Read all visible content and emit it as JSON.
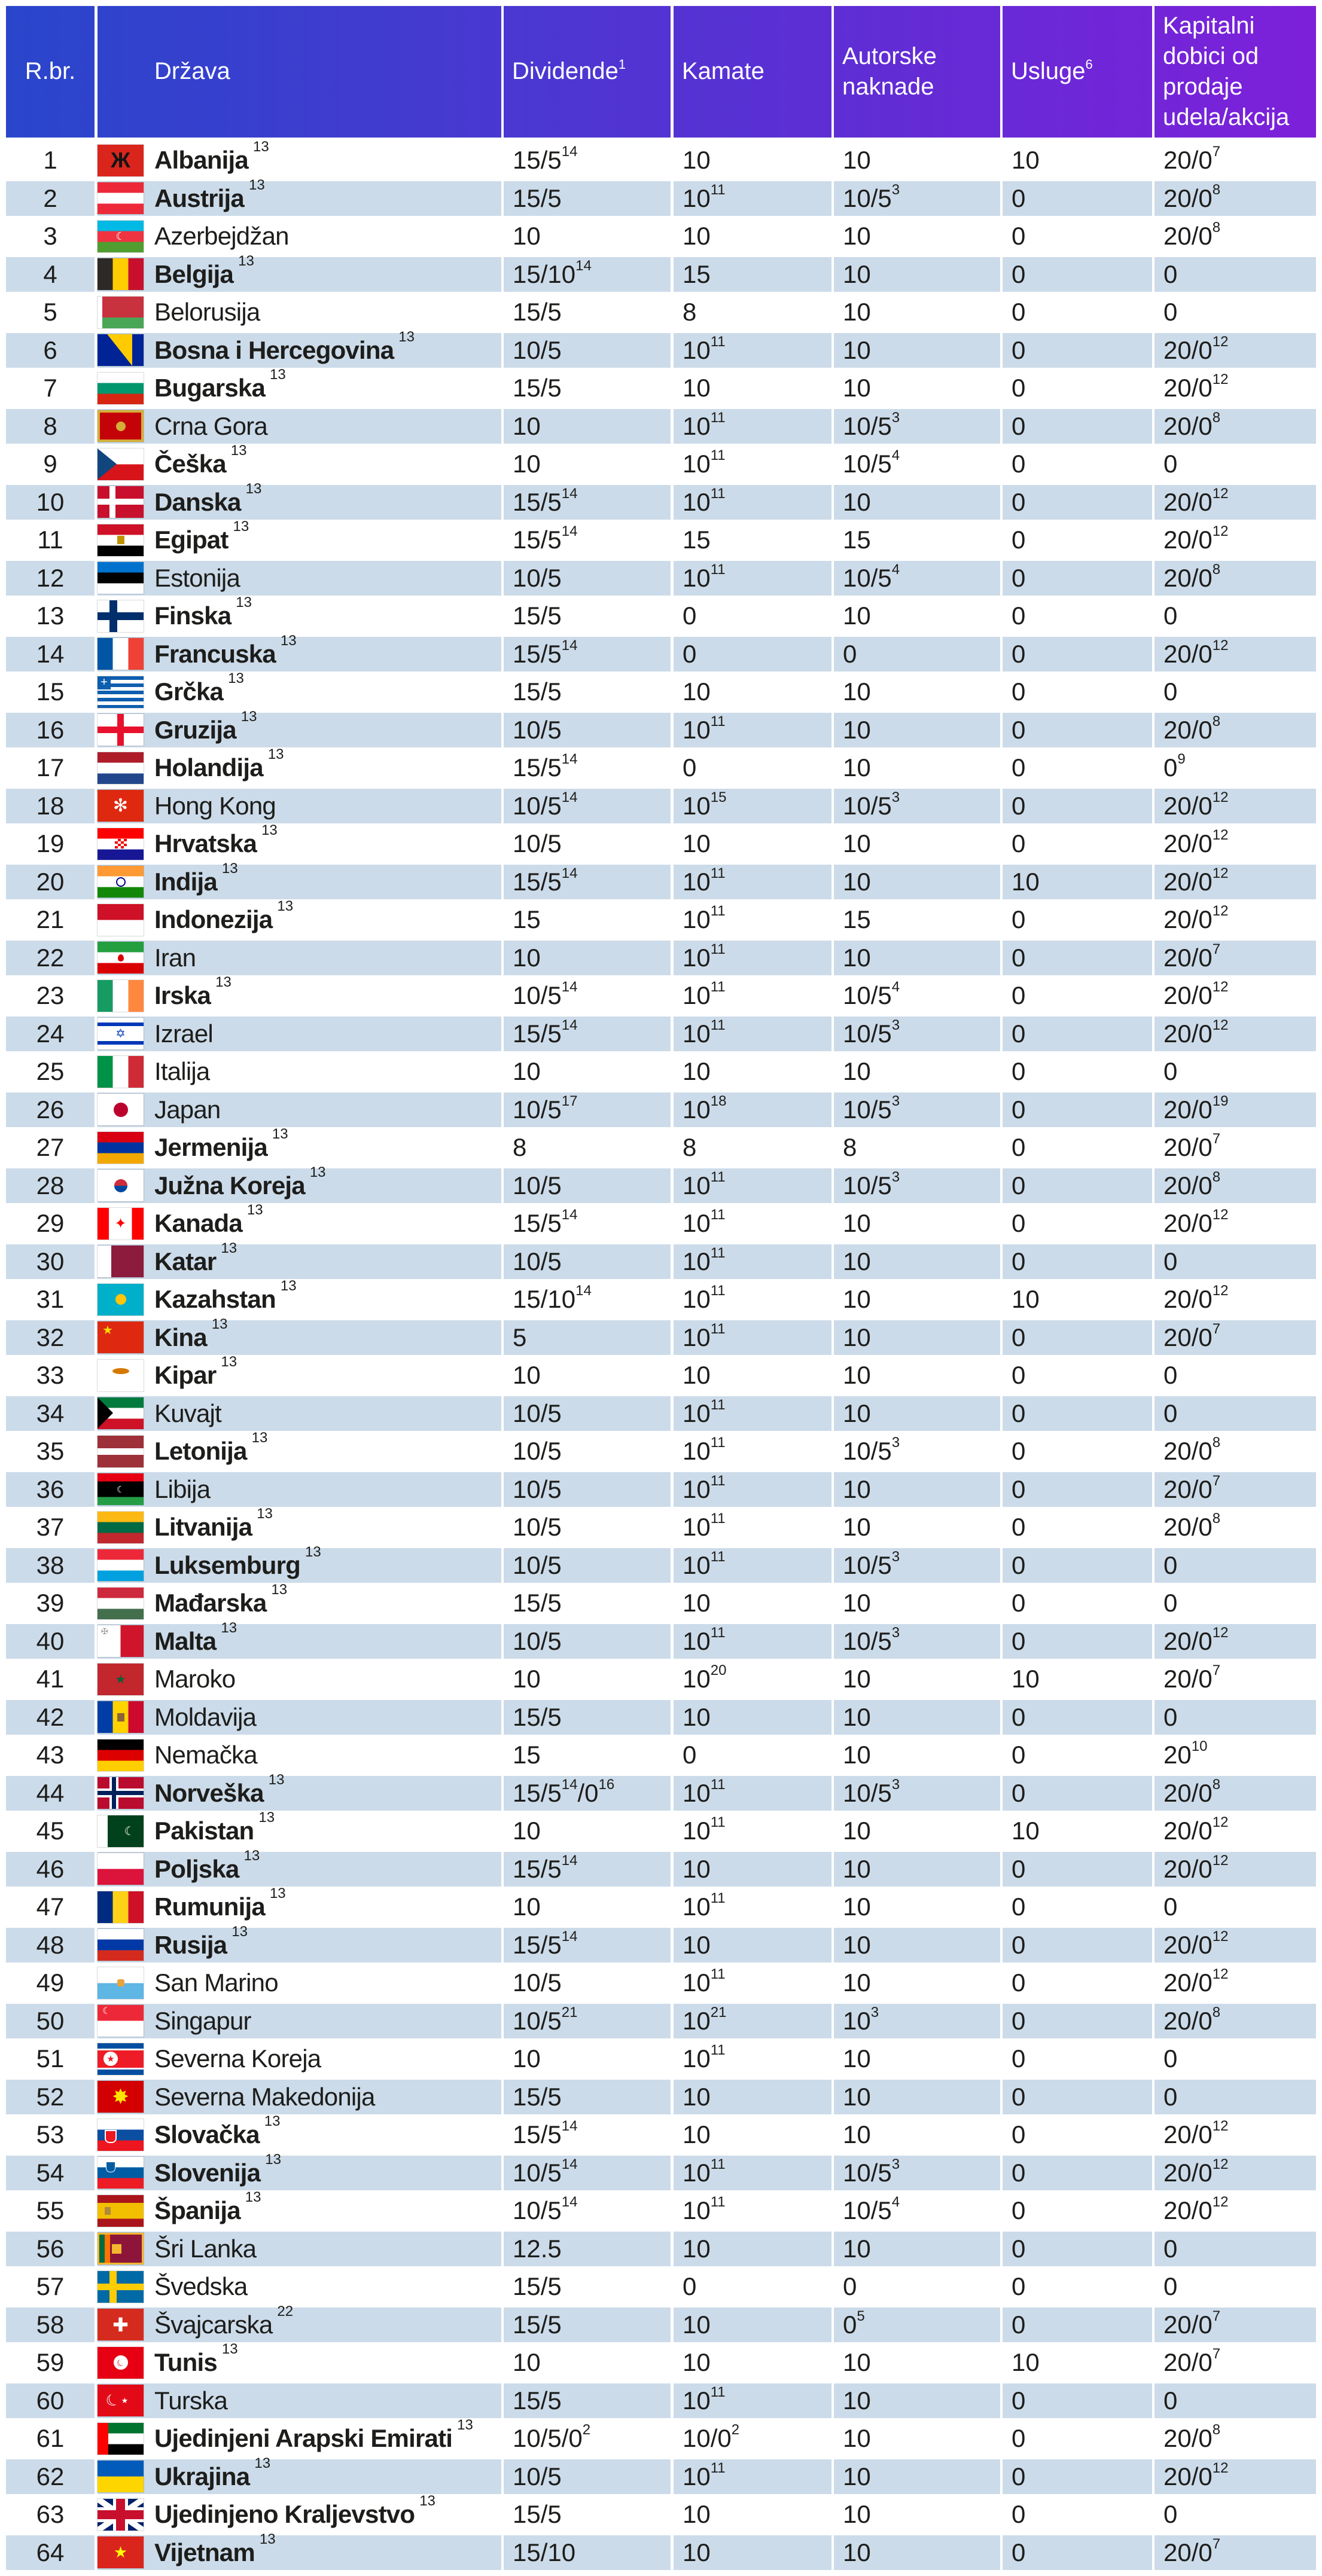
{
  "colors": {
    "header_gradient_start": "#2946CB",
    "header_gradient_end": "#7D20DA",
    "header_text": "#FFFFFF",
    "row_shade": "#CCDBE9",
    "body_text": "#1D1D1B"
  },
  "table": {
    "columns": [
      {
        "id": "rbr",
        "label": "R.br."
      },
      {
        "id": "drzava",
        "label": "Država"
      },
      {
        "id": "dividende",
        "label": "Dividende ^1"
      },
      {
        "id": "kamate",
        "label": "Kamate"
      },
      {
        "id": "autorske",
        "label": "Autorske naknade"
      },
      {
        "id": "usluge",
        "label": "Usluge ^6"
      },
      {
        "id": "kapitalni",
        "label": "Kapitalni dobici od prodaje udela/akcija"
      }
    ],
    "rows": [
      {
        "num": "1",
        "country": "Albanija",
        "sup": "13",
        "bold": true,
        "flag": "albania",
        "values": [
          "15/5 ^14",
          "10",
          "10",
          "10",
          "20/0 ^7"
        ]
      },
      {
        "num": "2",
        "country": "Austrija",
        "sup": "13",
        "bold": true,
        "flag": "austria",
        "values": [
          "15/5",
          "10 ^11",
          "10/5 ^3",
          "0",
          "20/0 ^8"
        ]
      },
      {
        "num": "3",
        "country": "Azerbejdžan",
        "sup": "",
        "bold": false,
        "flag": "azerbaijan",
        "values": [
          "10",
          "10",
          "10",
          "0",
          "20/0 ^8"
        ]
      },
      {
        "num": "4",
        "country": "Belgija",
        "sup": "13",
        "bold": true,
        "flag": "belgium",
        "values": [
          "15/10 ^14",
          "15",
          "10",
          "0",
          "0"
        ]
      },
      {
        "num": "5",
        "country": "Belorusija",
        "sup": "",
        "bold": false,
        "flag": "belarus",
        "values": [
          "15/5",
          "8",
          "10",
          "0",
          "0"
        ]
      },
      {
        "num": "6",
        "country": "Bosna i Hercegovina",
        "sup": "13",
        "bold": true,
        "flag": "bosnia",
        "values": [
          "10/5",
          "10 ^11",
          "10",
          "0",
          "20/0 ^12"
        ]
      },
      {
        "num": "7",
        "country": "Bugarska",
        "sup": "13",
        "bold": true,
        "flag": "bulgaria",
        "values": [
          "15/5",
          "10",
          "10",
          "0",
          "20/0 ^12"
        ]
      },
      {
        "num": "8",
        "country": "Crna Gora",
        "sup": "",
        "bold": false,
        "flag": "montenegro",
        "values": [
          "10",
          "10 ^11",
          "10/5 ^3",
          "0",
          "20/0 ^8"
        ]
      },
      {
        "num": "9",
        "country": "Češka",
        "sup": "13",
        "bold": true,
        "flag": "czechia",
        "values": [
          "10",
          "10 ^11",
          "10/5 ^4",
          "0",
          "0"
        ]
      },
      {
        "num": "10",
        "country": "Danska",
        "sup": "13",
        "bold": true,
        "flag": "denmark",
        "values": [
          "15/5 ^14",
          "10 ^11",
          "10",
          "0",
          "20/0 ^12"
        ]
      },
      {
        "num": "11",
        "country": "Egipat",
        "sup": "13",
        "bold": true,
        "flag": "egypt",
        "values": [
          "15/5 ^14",
          "15",
          "15",
          "0",
          "20/0 ^12"
        ]
      },
      {
        "num": "12",
        "country": "Estonija",
        "sup": "",
        "bold": false,
        "flag": "estonia",
        "values": [
          "10/5",
          "10 ^11",
          "10/5 ^4",
          "0",
          "20/0 ^8"
        ]
      },
      {
        "num": "13",
        "country": "Finska",
        "sup": "13",
        "bold": true,
        "flag": "finland",
        "values": [
          "15/5",
          "0",
          "10",
          "0",
          "0"
        ]
      },
      {
        "num": "14",
        "country": "Francuska",
        "sup": "13",
        "bold": true,
        "flag": "france",
        "values": [
          "15/5 ^14",
          "0",
          "0",
          "0",
          "20/0 ^12"
        ]
      },
      {
        "num": "15",
        "country": "Grčka",
        "sup": "13",
        "bold": true,
        "flag": "greece",
        "values": [
          "15/5",
          "10",
          "10",
          "0",
          "0"
        ]
      },
      {
        "num": "16",
        "country": "Gruzija",
        "sup": "13",
        "bold": true,
        "flag": "georgia",
        "values": [
          "10/5",
          "10 ^11",
          "10",
          "0",
          "20/0 ^8"
        ]
      },
      {
        "num": "17",
        "country": "Holandija",
        "sup": "13",
        "bold": true,
        "flag": "netherlands",
        "values": [
          "15/5 ^14",
          "0",
          "10",
          "0",
          "0 ^9"
        ]
      },
      {
        "num": "18",
        "country": "Hong Kong",
        "sup": "",
        "bold": false,
        "flag": "hongkong",
        "values": [
          "10/5 ^14",
          "10 ^15",
          "10/5 ^3",
          "0",
          "20/0 ^12"
        ]
      },
      {
        "num": "19",
        "country": "Hrvatska",
        "sup": "13",
        "bold": true,
        "flag": "croatia",
        "values": [
          "10/5",
          "10",
          "10",
          "0",
          "20/0 ^12"
        ]
      },
      {
        "num": "20",
        "country": "Indija",
        "sup": "13",
        "bold": true,
        "flag": "india",
        "values": [
          "15/5 ^14",
          "10 ^11",
          "10",
          "10",
          "20/0 ^12"
        ]
      },
      {
        "num": "21",
        "country": "Indonezija",
        "sup": "13",
        "bold": true,
        "flag": "indonesia",
        "values": [
          "15",
          "10 ^11",
          "15",
          "0",
          "20/0 ^12"
        ]
      },
      {
        "num": "22",
        "country": "Iran",
        "sup": "",
        "bold": false,
        "flag": "iran",
        "values": [
          "10",
          "10 ^11",
          "10",
          "0",
          "20/0 ^7"
        ]
      },
      {
        "num": "23",
        "country": "Irska",
        "sup": "13",
        "bold": true,
        "flag": "ireland",
        "values": [
          "10/5 ^14",
          "10 ^11",
          "10/5 ^4",
          "0",
          "20/0 ^12"
        ]
      },
      {
        "num": "24",
        "country": "Izrael",
        "sup": "",
        "bold": false,
        "flag": "israel",
        "values": [
          "15/5 ^14",
          "10 ^11",
          "10/5 ^3",
          "0",
          "20/0 ^12"
        ]
      },
      {
        "num": "25",
        "country": "Italija",
        "sup": "",
        "bold": false,
        "flag": "italy",
        "values": [
          "10",
          "10",
          "10",
          "0",
          "0"
        ]
      },
      {
        "num": "26",
        "country": "Japan",
        "sup": "",
        "bold": false,
        "flag": "japan",
        "values": [
          "10/5 ^17",
          "10 ^18",
          "10/5 ^3",
          "0",
          "20/0 ^19"
        ]
      },
      {
        "num": "27",
        "country": "Jermenija",
        "sup": "13",
        "bold": true,
        "flag": "armenia",
        "values": [
          "8",
          "8",
          "8",
          "0",
          "20/0 ^7"
        ]
      },
      {
        "num": "28",
        "country": "Južna Koreja",
        "sup": "13",
        "bold": true,
        "flag": "southkorea",
        "values": [
          "10/5",
          "10 ^11",
          "10/5 ^3",
          "0",
          "20/0 ^8"
        ]
      },
      {
        "num": "29",
        "country": "Kanada",
        "sup": "13",
        "bold": true,
        "flag": "canada",
        "values": [
          "15/5 ^14",
          "10 ^11",
          "10",
          "0",
          "20/0 ^12"
        ]
      },
      {
        "num": "30",
        "country": "Katar",
        "sup": "13",
        "bold": true,
        "flag": "qatar",
        "values": [
          "10/5",
          "10 ^11",
          "10",
          "0",
          "0"
        ]
      },
      {
        "num": "31",
        "country": "Kazahstan",
        "sup": "13",
        "bold": true,
        "flag": "kazakhstan",
        "values": [
          "15/10 ^14",
          "10 ^11",
          "10",
          "10",
          "20/0 ^12"
        ]
      },
      {
        "num": "32",
        "country": "Kina",
        "sup": "13",
        "bold": true,
        "flag": "china",
        "values": [
          "5",
          "10 ^11",
          "10",
          "0",
          "20/0 ^7"
        ]
      },
      {
        "num": "33",
        "country": "Kipar",
        "sup": "13",
        "bold": true,
        "flag": "cyprus",
        "values": [
          "10",
          "10",
          "10",
          "0",
          "0"
        ]
      },
      {
        "num": "34",
        "country": "Kuvajt",
        "sup": "",
        "bold": false,
        "flag": "kuwait",
        "values": [
          "10/5",
          "10 ^11",
          "10",
          "0",
          "0"
        ]
      },
      {
        "num": "35",
        "country": "Letonija",
        "sup": "13",
        "bold": true,
        "flag": "latvia",
        "values": [
          "10/5",
          "10 ^11",
          "10/5 ^3",
          "0",
          "20/0 ^8"
        ]
      },
      {
        "num": "36",
        "country": "Libija",
        "sup": "",
        "bold": false,
        "flag": "libya",
        "values": [
          "10/5",
          "10 ^11",
          "10",
          "0",
          "20/0 ^7"
        ]
      },
      {
        "num": "37",
        "country": "Litvanija",
        "sup": "13",
        "bold": true,
        "flag": "lithuania",
        "values": [
          "10/5",
          "10 ^11",
          "10",
          "0",
          "20/0 ^8"
        ]
      },
      {
        "num": "38",
        "country": "Luksemburg",
        "sup": "13",
        "bold": true,
        "flag": "luxembourg",
        "values": [
          "10/5",
          "10 ^11",
          "10/5 ^3",
          "0",
          "0"
        ]
      },
      {
        "num": "39",
        "country": "Mađarska",
        "sup": "13",
        "bold": true,
        "flag": "hungary",
        "values": [
          "15/5",
          "10",
          "10",
          "0",
          "0"
        ]
      },
      {
        "num": "40",
        "country": "Malta",
        "sup": "13",
        "bold": true,
        "flag": "malta",
        "values": [
          "10/5",
          "10 ^11",
          "10/5 ^3",
          "0",
          "20/0 ^12"
        ]
      },
      {
        "num": "41",
        "country": "Maroko",
        "sup": "",
        "bold": false,
        "flag": "morocco",
        "values": [
          "10",
          "10 ^20",
          "10",
          "10",
          "20/0 ^7"
        ]
      },
      {
        "num": "42",
        "country": "Moldavija",
        "sup": "",
        "bold": false,
        "flag": "moldova",
        "values": [
          "15/5",
          "10",
          "10",
          "0",
          "0"
        ]
      },
      {
        "num": "43",
        "country": "Nemačka",
        "sup": "",
        "bold": false,
        "flag": "germany",
        "values": [
          "15",
          "0",
          "10",
          "0",
          "20 ^10"
        ]
      },
      {
        "num": "44",
        "country": "Norveška",
        "sup": "13",
        "bold": true,
        "flag": "norway",
        "values": [
          "15/5^14/0^16",
          "10 ^11",
          "10/5 ^3",
          "0",
          "20/0 ^8"
        ]
      },
      {
        "num": "45",
        "country": "Pakistan",
        "sup": "13",
        "bold": true,
        "flag": "pakistan",
        "values": [
          "10",
          "10 ^11",
          "10",
          "10",
          "20/0 ^12"
        ]
      },
      {
        "num": "46",
        "country": "Poljska",
        "sup": "13",
        "bold": true,
        "flag": "poland",
        "values": [
          "15/5 ^14",
          "10",
          "10",
          "0",
          "20/0 ^12"
        ]
      },
      {
        "num": "47",
        "country": "Rumunija",
        "sup": "13",
        "bold": true,
        "flag": "romania",
        "values": [
          "10",
          "10 ^11",
          "10",
          "0",
          "0"
        ]
      },
      {
        "num": "48",
        "country": "Rusija",
        "sup": "13",
        "bold": true,
        "flag": "russia",
        "values": [
          "15/5 ^14",
          "10",
          "10",
          "0",
          "20/0 ^12"
        ]
      },
      {
        "num": "49",
        "country": "San Marino",
        "sup": "",
        "bold": false,
        "flag": "sanmarino",
        "values": [
          "10/5",
          "10 ^11",
          "10",
          "0",
          "20/0 ^12"
        ]
      },
      {
        "num": "50",
        "country": "Singapur",
        "sup": "",
        "bold": false,
        "flag": "singapore",
        "values": [
          "10/5 ^21",
          "10 ^21",
          "10 ^3",
          "0",
          "20/0 ^8"
        ]
      },
      {
        "num": "51",
        "country": "Severna Koreja",
        "sup": "",
        "bold": false,
        "flag": "northkorea",
        "values": [
          "10",
          "10 ^11",
          "10",
          "0",
          "0"
        ]
      },
      {
        "num": "52",
        "country": "Severna Makedonija",
        "sup": "",
        "bold": false,
        "flag": "northmacedonia",
        "values": [
          "15/5",
          "10",
          "10",
          "0",
          "0"
        ]
      },
      {
        "num": "53",
        "country": "Slovačka",
        "sup": "13",
        "bold": true,
        "flag": "slovakia",
        "values": [
          "15/5 ^14",
          "10",
          "10",
          "0",
          "20/0 ^12"
        ]
      },
      {
        "num": "54",
        "country": "Slovenija",
        "sup": "13",
        "bold": true,
        "flag": "slovenia",
        "values": [
          "10/5 ^14",
          "10 ^11",
          "10/5 ^3",
          "0",
          "20/0 ^12"
        ]
      },
      {
        "num": "55",
        "country": "Španija",
        "sup": "13",
        "bold": true,
        "flag": "spain",
        "values": [
          "10/5 ^14",
          "10 ^11",
          "10/5 ^4",
          "0",
          "20/0 ^12"
        ]
      },
      {
        "num": "56",
        "country": "Šri Lanka",
        "sup": "",
        "bold": false,
        "flag": "srilanka",
        "values": [
          "12.5",
          "10",
          "10",
          "0",
          "0"
        ]
      },
      {
        "num": "57",
        "country": "Švedska",
        "sup": "",
        "bold": false,
        "flag": "sweden",
        "values": [
          "15/5",
          "0",
          "0",
          "0",
          "0"
        ]
      },
      {
        "num": "58",
        "country": "Švajcarska",
        "sup": "22",
        "bold": false,
        "flag": "switzerland",
        "values": [
          "15/5",
          "10",
          "0 ^5",
          "0",
          "20/0 ^7"
        ]
      },
      {
        "num": "59",
        "country": "Tunis",
        "sup": "13",
        "bold": true,
        "flag": "tunisia",
        "values": [
          "10",
          "10",
          "10",
          "10",
          "20/0 ^7"
        ]
      },
      {
        "num": "60",
        "country": "Turska",
        "sup": "",
        "bold": false,
        "flag": "turkey",
        "values": [
          "15/5",
          "10 ^11",
          "10",
          "0",
          "0"
        ]
      },
      {
        "num": "61",
        "country": "Ujedinjeni Arapski Emirati",
        "sup": "13",
        "bold": true,
        "flag": "uae",
        "values": [
          "10/5/0 ^2",
          "10/0 ^2",
          "10",
          "0",
          "20/0 ^8"
        ]
      },
      {
        "num": "62",
        "country": "Ukrajina",
        "sup": "13",
        "bold": true,
        "flag": "ukraine",
        "values": [
          "10/5",
          "10 ^11",
          "10",
          "0",
          "20/0 ^12"
        ]
      },
      {
        "num": "63",
        "country": "Ujedinjeno Kraljevstvo",
        "sup": "13",
        "bold": true,
        "flag": "uk",
        "values": [
          "15/5",
          "10",
          "10",
          "0",
          "0"
        ]
      },
      {
        "num": "64",
        "country": "Vijetnam",
        "sup": "13",
        "bold": true,
        "flag": "vietnam",
        "values": [
          "15/10",
          "10",
          "10",
          "0",
          "20/0 ^7"
        ]
      }
    ]
  }
}
